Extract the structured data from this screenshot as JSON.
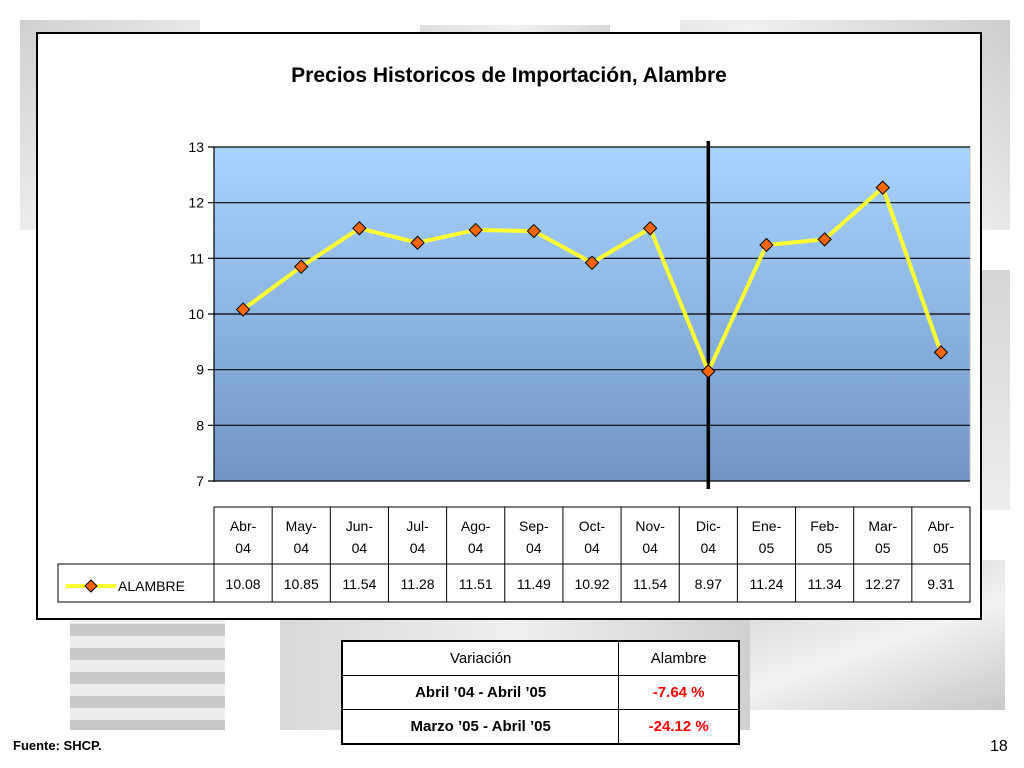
{
  "chart_data": {
    "type": "line",
    "title": "Precios Historicos de Importación, Alambre",
    "categories": [
      "Abr-04",
      "May-04",
      "Jun-04",
      "Jul-04",
      "Ago-04",
      "Sep-04",
      "Oct-04",
      "Nov-04",
      "Dic-04",
      "Ene-05",
      "Feb-05",
      "Mar-05",
      "Abr-05"
    ],
    "category_lines": [
      [
        "Abr-",
        "04"
      ],
      [
        "May-",
        "04"
      ],
      [
        "Jun-",
        "04"
      ],
      [
        "Jul-",
        "04"
      ],
      [
        "Ago-",
        "04"
      ],
      [
        "Sep-",
        "04"
      ],
      [
        "Oct-",
        "04"
      ],
      [
        "Nov-",
        "04"
      ],
      [
        "Dic-",
        "04"
      ],
      [
        "Ene-",
        "05"
      ],
      [
        "Feb-",
        "05"
      ],
      [
        "Mar-",
        "05"
      ],
      [
        "Abr-",
        "05"
      ]
    ],
    "series": [
      {
        "name": "ALAMBRE",
        "values": [
          10.08,
          10.85,
          11.54,
          11.28,
          11.51,
          11.49,
          10.92,
          11.54,
          8.97,
          11.24,
          11.34,
          12.27,
          9.31
        ]
      }
    ],
    "value_labels": [
      "10.08",
      "10.85",
      "11.54",
      "11.28",
      "11.51",
      "11.49",
      "10.92",
      "11.54",
      "8.97",
      "11.24",
      "11.34",
      "12.27",
      "9.31"
    ],
    "ylim": [
      7,
      13
    ],
    "yticks": [
      7,
      8,
      9,
      10,
      11,
      12,
      13
    ],
    "grid": true,
    "legend": "data-table",
    "marker_line_after_category": "Dic-04",
    "colors": {
      "line": "#ffff33",
      "marker": "#ff6600",
      "plot_top": "#a9d4ff",
      "plot_bottom": "#6f95c4"
    }
  },
  "variation_table": {
    "headers": [
      "Variación",
      "Alambre"
    ],
    "rows": [
      {
        "period": "Abril ’04 - Abril ’05",
        "value": "-7.64 %"
      },
      {
        "period": "Marzo ’05 - Abril ’05",
        "value": "-24.12 %"
      }
    ]
  },
  "footer": {
    "source": "Fuente: SHCP.",
    "page_number": "18"
  }
}
